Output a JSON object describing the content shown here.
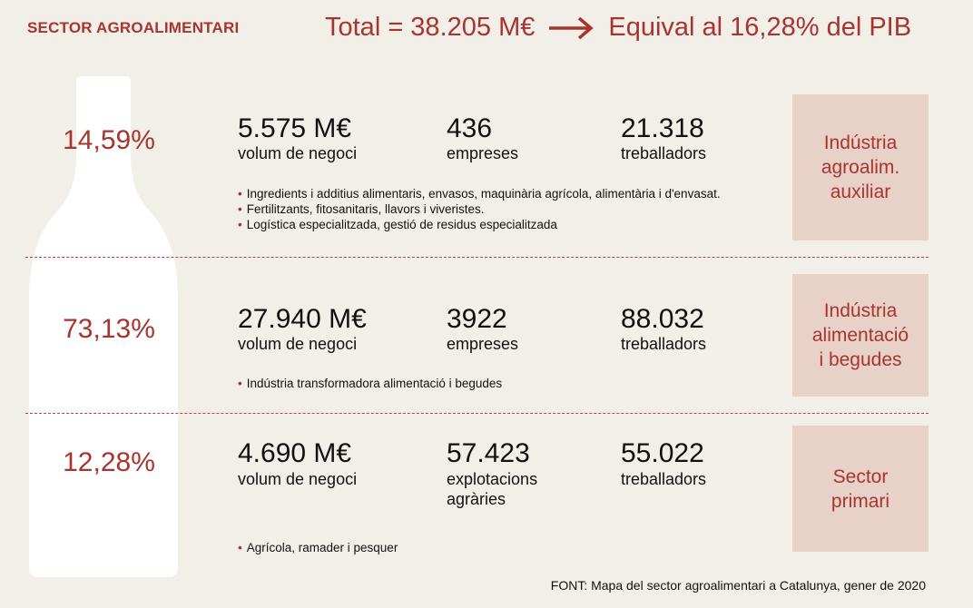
{
  "header": {
    "section_title": "SECTOR AGROALIMENTARI",
    "total_text": "Total = 38.205 M€",
    "gdp_text": "Equival al 16,28% del PIB"
  },
  "colors": {
    "accent": "#a8342f",
    "box_fill": "#e8d2c8",
    "bottle": "#ffffff",
    "background": "#f2efe8"
  },
  "chart_data": {
    "type": "table",
    "total": "38.205 M€",
    "gdp_share": "16,28%",
    "rows": [
      {
        "share": "14,59%",
        "business_volume": "5.575 M€",
        "business_volume_label": "volum de negoci",
        "companies": "436",
        "companies_label": "empreses",
        "workers": "21.318",
        "workers_label": "treballadors",
        "bullets": [
          "Ingredients i additius alimentaris, envasos, maquinària agrícola, alimentària i d'envasat.",
          "Fertilitzants, fitosanitaris, llavors i viveristes.",
          "Logística especialitzada, gestió de residus especialitzada"
        ],
        "category": [
          "Indústria",
          "agroalim.",
          "auxiliar"
        ]
      },
      {
        "share": "73,13%",
        "business_volume": "27.940 M€",
        "business_volume_label": "volum de negoci",
        "companies": "3922",
        "companies_label": "empreses",
        "workers": "88.032",
        "workers_label": "treballadors",
        "bullets": [
          "Indústria transformadora alimentació i begudes"
        ],
        "category": [
          "Indústria",
          "alimentació",
          "i begudes"
        ]
      },
      {
        "share": "12,28%",
        "business_volume": "4.690 M€",
        "business_volume_label": "volum de negoci",
        "companies": "57.423",
        "companies_label_1": "explotacions",
        "companies_label_2": "agràries",
        "workers": "55.022",
        "workers_label": "treballadors",
        "bullets": [
          "Agrícola, ramader i pesquer"
        ],
        "category": [
          "Sector",
          "primari"
        ]
      }
    ]
  },
  "footer": {
    "source": "FONT: Mapa del sector agroalimentari a Catalunya, gener de 2020"
  }
}
